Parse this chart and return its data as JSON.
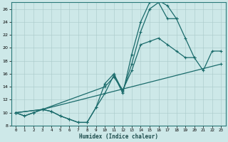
{
  "xlabel": "Humidex (Indice chaleur)",
  "bg_color": "#cde8e8",
  "line_color": "#1a6b6b",
  "xlim": [
    -0.5,
    23.5
  ],
  "ylim": [
    8,
    27
  ],
  "xticks": [
    0,
    1,
    2,
    3,
    4,
    5,
    6,
    7,
    8,
    9,
    10,
    11,
    12,
    13,
    14,
    15,
    16,
    17,
    18,
    19,
    20,
    21,
    22,
    23
  ],
  "yticks": [
    8,
    10,
    12,
    14,
    16,
    18,
    20,
    22,
    24,
    26
  ],
  "series1_x": [
    0,
    1,
    2,
    3,
    4,
    5,
    6,
    7,
    8,
    9,
    10,
    11,
    12,
    13,
    14,
    15,
    16,
    17,
    18,
    19,
    20,
    21,
    22,
    23
  ],
  "series1_y": [
    10.0,
    9.5,
    10.0,
    10.5,
    10.2,
    9.5,
    9.0,
    8.5,
    8.5,
    10.8,
    13.0,
    15.8,
    13.0,
    19.0,
    24.0,
    27.0,
    27.3,
    26.5,
    24.5,
    21.5,
    18.5,
    null,
    null,
    null
  ],
  "series2_x": [
    0,
    1,
    2,
    3,
    4,
    5,
    6,
    7,
    8,
    9,
    10,
    11,
    12,
    13,
    14,
    15,
    16,
    17,
    18,
    19,
    20,
    21,
    22,
    23
  ],
  "series2_y": [
    10.0,
    9.5,
    10.0,
    10.5,
    10.2,
    9.5,
    9.0,
    8.5,
    8.5,
    10.8,
    14.5,
    16.0,
    13.3,
    17.5,
    22.5,
    26.0,
    27.0,
    24.5,
    24.5,
    null,
    null,
    null,
    null,
    null
  ],
  "series3_x": [
    0,
    3,
    10,
    11,
    12,
    13,
    14,
    15,
    16,
    17,
    18,
    19,
    20,
    21,
    22,
    23
  ],
  "series3_y": [
    10.0,
    10.5,
    14.0,
    15.5,
    13.5,
    16.5,
    20.5,
    21.0,
    21.5,
    20.5,
    19.5,
    18.5,
    18.5,
    16.5,
    19.5,
    19.5
  ],
  "series4_x": [
    0,
    3,
    23
  ],
  "series4_y": [
    10.0,
    10.5,
    17.5
  ]
}
